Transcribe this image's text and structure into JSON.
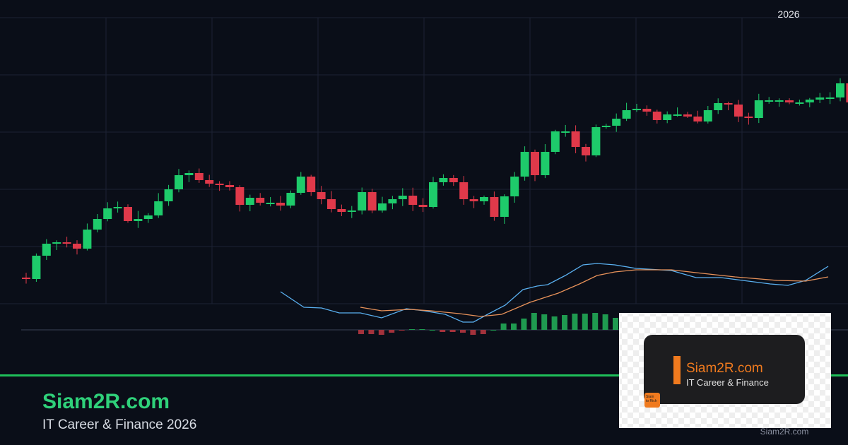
{
  "chart_label": "2026",
  "brand": {
    "title": "Siam2R.com",
    "subtitle": "IT Career & Finance 2026"
  },
  "logo": {
    "title": "Siam2R.com",
    "subtitle": "IT Career & Finance",
    "badge": "Siam to Rich"
  },
  "watermark": "Siam2R.com"
}
